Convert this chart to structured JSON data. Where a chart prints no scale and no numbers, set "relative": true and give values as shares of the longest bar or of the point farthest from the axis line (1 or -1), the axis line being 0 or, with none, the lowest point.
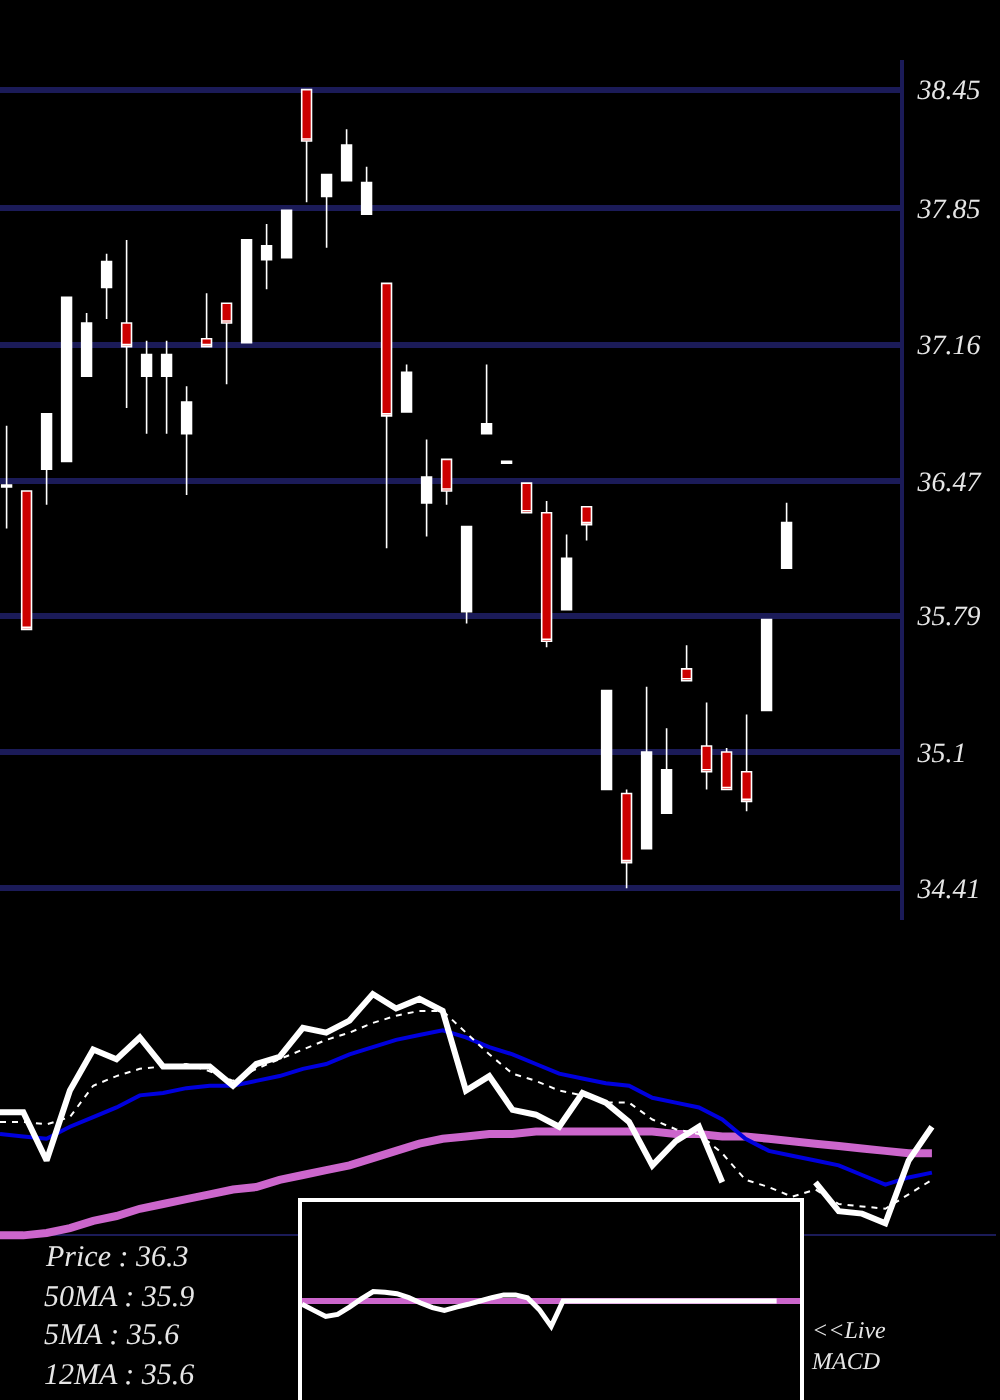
{
  "chart_data": [
    {
      "type": "candlestick",
      "categories": [
        null,
        null,
        null,
        null,
        null,
        null,
        null,
        null,
        null,
        null,
        null,
        null,
        null,
        null,
        null,
        null,
        null,
        null,
        null,
        null,
        null,
        null,
        null,
        null,
        null,
        null,
        null,
        null,
        null,
        null,
        null,
        null,
        null,
        null,
        null,
        null,
        null,
        null,
        null,
        null
      ],
      "ohlc": [
        [
          36.44,
          36.75,
          36.23,
          36.45
        ],
        [
          36.42,
          36.42,
          35.72,
          35.72
        ],
        [
          36.53,
          36.81,
          36.35,
          36.81
        ],
        [
          36.57,
          37.4,
          36.57,
          37.4
        ],
        [
          37.0,
          37.32,
          37.0,
          37.27
        ],
        [
          37.45,
          37.62,
          37.29,
          37.58
        ],
        [
          37.27,
          37.69,
          36.84,
          37.15
        ],
        [
          37.0,
          37.18,
          36.71,
          37.11
        ],
        [
          37.0,
          37.18,
          36.71,
          37.11
        ],
        [
          36.71,
          36.95,
          36.4,
          36.87
        ],
        [
          37.19,
          37.42,
          37.15,
          37.15
        ],
        [
          37.37,
          37.37,
          36.96,
          37.27
        ],
        [
          37.17,
          37.69,
          37.17,
          37.69
        ],
        [
          37.59,
          37.77,
          37.44,
          37.66
        ],
        [
          37.6,
          37.84,
          37.6,
          37.84
        ],
        [
          38.45,
          38.45,
          37.88,
          38.19
        ],
        [
          37.91,
          38.02,
          37.65,
          38.02
        ],
        [
          37.99,
          38.25,
          37.99,
          38.17
        ],
        [
          37.82,
          38.06,
          37.82,
          37.98
        ],
        [
          37.47,
          37.47,
          36.13,
          36.8
        ],
        [
          36.82,
          37.06,
          36.82,
          37.02
        ],
        [
          36.36,
          36.68,
          36.19,
          36.49
        ],
        [
          36.58,
          36.58,
          36.35,
          36.42
        ],
        [
          35.81,
          36.24,
          35.75,
          36.24
        ],
        [
          36.71,
          37.06,
          36.71,
          36.76
        ],
        [
          36.56,
          36.57,
          36.56,
          36.57
        ],
        [
          36.46,
          36.46,
          36.31,
          36.31
        ],
        [
          36.31,
          36.37,
          35.63,
          35.66
        ],
        [
          35.82,
          36.2,
          35.82,
          36.08
        ],
        [
          36.34,
          36.34,
          36.17,
          36.25
        ],
        [
          34.91,
          35.41,
          34.91,
          35.41
        ],
        [
          34.89,
          34.91,
          34.41,
          34.54
        ],
        [
          34.61,
          35.43,
          34.61,
          35.1
        ],
        [
          34.79,
          35.22,
          34.79,
          35.01
        ],
        [
          35.52,
          35.64,
          35.46,
          35.46
        ],
        [
          35.13,
          35.35,
          34.91,
          35.0
        ],
        [
          35.1,
          35.12,
          34.91,
          34.91
        ],
        [
          35.0,
          35.29,
          34.8,
          34.85
        ],
        [
          35.31,
          35.77,
          35.31,
          35.77
        ],
        [
          36.03,
          36.36,
          36.03,
          36.26
        ]
      ],
      "colors": [
        "#ffffff",
        "#cc0000",
        "#ffffff",
        "#ffffff",
        "#ffffff",
        "#ffffff",
        "#cc0000",
        "#ffffff",
        "#ffffff",
        "#ffffff",
        "#cc0000",
        "#cc0000",
        "#ffffff",
        "#ffffff",
        "#ffffff",
        "#cc0000",
        "#ffffff",
        "#ffffff",
        "#ffffff",
        "#cc0000",
        "#ffffff",
        "#ffffff",
        "#cc0000",
        "#ffffff",
        "#ffffff",
        "#ffffff",
        "#cc0000",
        "#cc0000",
        "#ffffff",
        "#cc0000",
        "#ffffff",
        "#cc0000",
        "#ffffff",
        "#ffffff",
        "#cc0000",
        "#cc0000",
        "#cc0000",
        "#cc0000",
        "#ffffff",
        "#ffffff"
      ],
      "ylim": [
        34.25,
        38.6
      ],
      "yticks": [
        34.41,
        35.1,
        35.79,
        36.47,
        37.16,
        37.85,
        38.45
      ],
      "grid": "y",
      "tick_labels": "y"
    },
    {
      "type": "line",
      "relative": true,
      "categories": [
        null,
        null,
        null,
        null,
        null,
        null,
        null,
        null,
        null,
        null,
        null,
        null,
        null,
        null,
        null,
        null,
        null,
        null,
        null,
        null,
        null,
        null,
        null,
        null,
        null,
        null,
        null,
        null,
        null,
        null,
        null,
        null,
        null,
        null,
        null,
        null,
        null,
        null,
        null,
        null,
        null
      ],
      "series": [
        {
          "color": "#cc66cc",
          "values": [
            0,
            0,
            0.01,
            0.03,
            0.06,
            0.08,
            0.11,
            0.13,
            0.15,
            0.17,
            0.19,
            0.2,
            0.23,
            0.25,
            0.27,
            0.29,
            0.32,
            0.35,
            0.38,
            0.4,
            0.41,
            0.42,
            0.42,
            0.43,
            0.43,
            0.43,
            0.43,
            0.43,
            0.43,
            0.42,
            0.42,
            0.41,
            0.41,
            0.4,
            0.39,
            0.38,
            0.37,
            0.36,
            0.35,
            0.34,
            0.34
          ]
        },
        {
          "color": "#0000dd",
          "values": [
            0.42,
            0.41,
            0.4,
            0.45,
            0.49,
            0.53,
            0.58,
            0.59,
            0.61,
            0.62,
            0.62,
            0.64,
            0.66,
            0.69,
            0.71,
            0.75,
            0.78,
            0.81,
            0.83,
            0.85,
            0.82,
            0.78,
            0.75,
            0.71,
            0.67,
            0.65,
            0.63,
            0.62,
            0.57,
            0.55,
            0.53,
            0.48,
            0.4,
            0.35,
            0.33,
            0.31,
            0.29,
            0.25,
            0.21,
            0.24,
            0.26
          ]
        },
        {
          "color": "#ffffff",
          "line_style": "dotted",
          "values": [
            0.47,
            0.47,
            0.46,
            0.49,
            0.62,
            0.66,
            0.69,
            0.7,
            0.71,
            0.68,
            0.64,
            0.69,
            0.73,
            0.77,
            0.81,
            0.84,
            0.88,
            0.91,
            0.93,
            0.93,
            0.84,
            0.75,
            0.67,
            0.64,
            0.6,
            0.58,
            0.55,
            0.55,
            0.48,
            0.44,
            0.42,
            0.34,
            0.23,
            0.2,
            0.16,
            0.19,
            0.13,
            0.12,
            0.11,
            0.17,
            0.23
          ]
        },
        {
          "color": "#ffffff",
          "values": [
            0.51,
            0.51,
            0.31,
            0.6,
            0.77,
            0.73,
            0.82,
            0.7,
            0.7,
            0.7,
            0.62,
            0.71,
            0.74,
            0.86,
            0.84,
            0.89,
            1,
            0.94,
            0.98,
            0.93,
            0.6,
            0.66,
            0.52,
            0.5,
            0.45,
            0.59,
            0.55,
            0.47,
            0.29,
            0.39,
            0.45,
            0.22,
            null,
            null,
            null,
            0.22,
            0.1,
            0.09,
            0.05,
            0.31,
            0.45
          ]
        }
      ],
      "annotations": [
        "Price : 36.3",
        "50MA : 35.9",
        "5MA : 35.6",
        "12MA : 35.6"
      ]
    },
    {
      "type": "line",
      "relative": true,
      "categories": [
        null,
        null,
        null,
        null,
        null,
        null,
        null,
        null,
        null,
        null,
        null,
        null,
        null,
        null,
        null,
        null,
        null,
        null,
        null,
        null,
        null,
        null,
        null,
        null,
        null,
        null,
        null,
        null,
        null,
        null,
        null,
        null,
        null,
        null,
        null,
        null,
        null,
        null,
        null,
        null,
        null
      ],
      "series": [
        {
          "color": "#ffffff",
          "values": [
            -0.13,
            -0.37,
            -0.61,
            -0.53,
            -0.24,
            0.08,
            0.37,
            0.34,
            0.29,
            0.13,
            -0.08,
            -0.26,
            -0.37,
            -0.24,
            -0.13,
            0,
            0.13,
            0.24,
            0.24,
            0.13,
            -0.34,
            -1,
            0,
            0,
            0,
            0,
            0,
            0,
            0,
            0,
            0,
            0,
            0,
            0,
            0,
            0,
            0,
            0,
            0,
            0,
            0
          ]
        }
      ],
      "ref_lines": [
        {
          "axis": "y",
          "value": 0,
          "color": "#cc66cc"
        }
      ],
      "annotations": [
        "<<Live\nMACD"
      ]
    }
  ]
}
